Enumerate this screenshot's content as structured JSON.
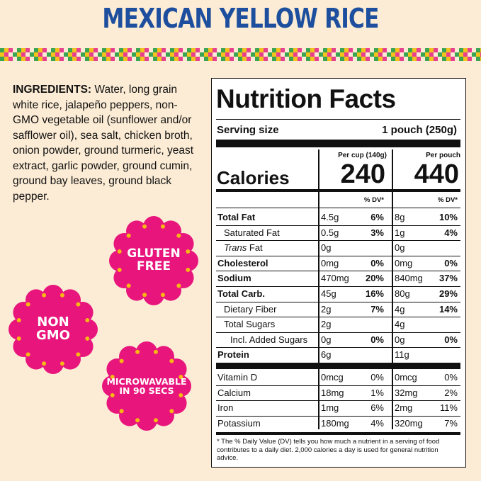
{
  "title": "MEXICAN YELLOW RICE",
  "ingredients": {
    "label": "INGREDIENTS:",
    "text": "Water, long grain white rice, jalapeño peppers, non-GMO vegetable oil (sunflower and/or safflower oil), sea salt, chicken broth, onion powder, ground turmeric, yeast extract, garlic powder, ground cumin, ground bay leaves, ground black pepper."
  },
  "badges": [
    {
      "lines": [
        "GLUTEN",
        "FREE"
      ]
    },
    {
      "lines": [
        "NON",
        "GMO"
      ]
    },
    {
      "lines": [
        "MICROWAVABLE",
        "IN 90 SECS"
      ]
    }
  ],
  "nutrition": {
    "title": "Nutrition Facts",
    "serving_label": "Serving size",
    "serving_value": "1 pouch (250g)",
    "columns": [
      "Per cup (140g)",
      "Per pouch"
    ],
    "calories_label": "Calories",
    "calories": [
      "240",
      "440"
    ],
    "dv_header": [
      "% DV*",
      "% DV*"
    ],
    "nutrients": [
      {
        "name": "Total Fat",
        "bold": true,
        "indent": 0,
        "cup": "4.5g",
        "cup_dv": "6%",
        "pouch": "8g",
        "pouch_dv": "10%"
      },
      {
        "name": "Saturated Fat",
        "bold": false,
        "indent": 1,
        "cup": "0.5g",
        "cup_dv": "3%",
        "pouch": "1g",
        "pouch_dv": "4%"
      },
      {
        "name_italic": "Trans",
        "name": "Fat",
        "bold": false,
        "indent": 1,
        "cup": "0g",
        "cup_dv": null,
        "pouch": "0g",
        "pouch_dv": null
      },
      {
        "name": "Cholesterol",
        "bold": true,
        "indent": 0,
        "cup": "0mg",
        "cup_dv": "0%",
        "pouch": "0mg",
        "pouch_dv": "0%"
      },
      {
        "name": "Sodium",
        "bold": true,
        "indent": 0,
        "cup": "470mg",
        "cup_dv": "20%",
        "pouch": "840mg",
        "pouch_dv": "37%"
      },
      {
        "name": "Total Carb.",
        "bold": true,
        "indent": 0,
        "cup": "45g",
        "cup_dv": "16%",
        "pouch": "80g",
        "pouch_dv": "29%"
      },
      {
        "name": "Dietary Fiber",
        "bold": false,
        "indent": 1,
        "cup": "2g",
        "cup_dv": "7%",
        "pouch": "4g",
        "pouch_dv": "14%"
      },
      {
        "name": "Total Sugars",
        "bold": false,
        "indent": 1,
        "cup": "2g",
        "cup_dv": null,
        "pouch": "4g",
        "pouch_dv": null
      },
      {
        "name": "Incl. Added Sugars",
        "bold": false,
        "indent": 2,
        "cup": "0g",
        "cup_dv": "0%",
        "pouch": "0g",
        "pouch_dv": "0%"
      },
      {
        "name": "Protein",
        "bold": true,
        "indent": 0,
        "cup": "6g",
        "cup_dv": null,
        "pouch": "11g",
        "pouch_dv": null
      }
    ],
    "vitamins": [
      {
        "name": "Vitamin D",
        "cup": "0mcg",
        "cup_dv": "0%",
        "pouch": "0mcg",
        "pouch_dv": "0%"
      },
      {
        "name": "Calcium",
        "cup": "18mg",
        "cup_dv": "1%",
        "pouch": "32mg",
        "pouch_dv": "2%"
      },
      {
        "name": "Iron",
        "cup": "1mg",
        "cup_dv": "6%",
        "pouch": "2mg",
        "pouch_dv": "11%"
      },
      {
        "name": "Potassium",
        "cup": "180mg",
        "cup_dv": "4%",
        "pouch": "320mg",
        "pouch_dv": "7%"
      }
    ],
    "footnote": "* The % Daily Value (DV) tells you how much a nutrient in a serving of food contributes to a daily diet. 2,000 calories a day is used for general nutrition advice."
  }
}
